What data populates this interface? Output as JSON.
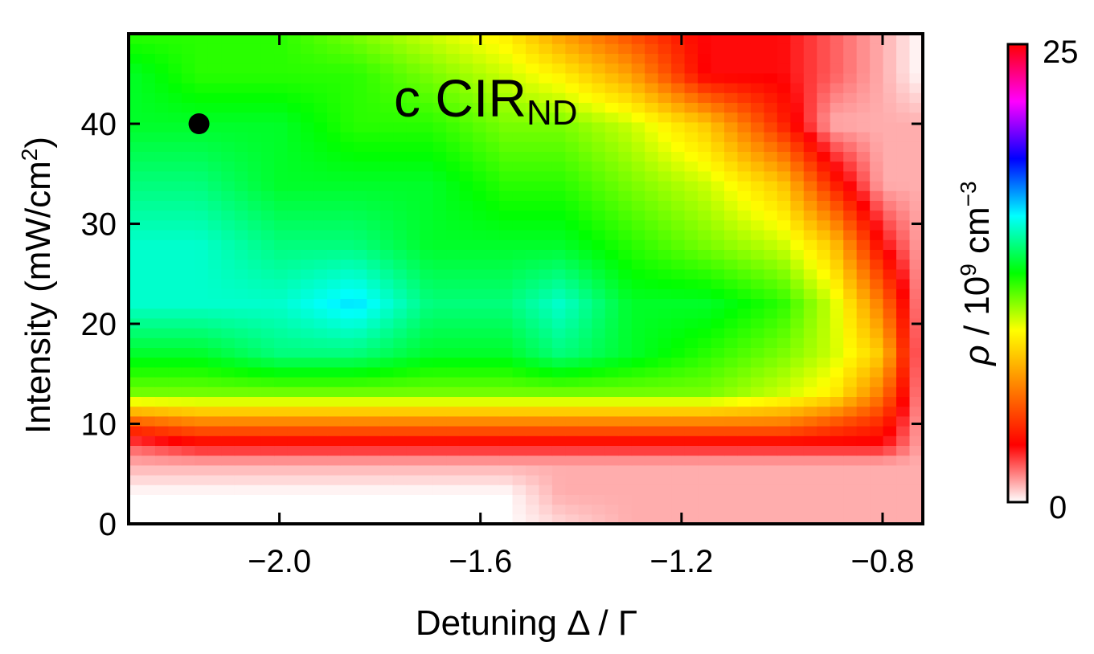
{
  "chart_data": {
    "type": "heatmap",
    "panel_label": "c CIR",
    "panel_label_subscript": "ND",
    "xlabel": "Detuning Δ / Γ",
    "ylabel": "Intensity (mW/cm",
    "ylabel_superscript": "2",
    "ylabel_close": ")",
    "xlim": [
      -2.3,
      -0.72
    ],
    "ylim": [
      0,
      49
    ],
    "xticks": [
      -2.0,
      -1.6,
      -1.2,
      -0.8
    ],
    "xtick_labels": [
      "−2.0",
      "−1.6",
      "−1.2",
      "−0.8"
    ],
    "yticks": [
      0,
      10,
      20,
      30,
      40
    ],
    "ytick_labels": [
      "0",
      "10",
      "20",
      "30",
      "40"
    ],
    "colorbar": {
      "min": 0,
      "max": 25,
      "min_label": "0",
      "max_label": "25",
      "label_rho": "ρ",
      "label_mid": " / 10",
      "label_exp": "9",
      "label_unit": " cm",
      "label_unit_exp": "−3",
      "colors": [
        "#ffffff",
        "#ff0000",
        "#ff8000",
        "#ffff00",
        "#00ff00",
        "#00ffff",
        "#0000ff",
        "#ff00ff",
        "#ff0000"
      ]
    },
    "marker": {
      "x": -2.16,
      "y": 40
    },
    "x": [
      -2.3,
      -2.16,
      -2.0,
      -1.85,
      -1.7,
      -1.55,
      -1.44,
      -1.3,
      -1.15,
      -1.0,
      -0.9,
      -0.8,
      -0.72
    ],
    "y": [
      0,
      3,
      6,
      8,
      10,
      13,
      17,
      22,
      28,
      34,
      40,
      45,
      49
    ],
    "z": [
      [
        0,
        0,
        0,
        0,
        0,
        0,
        0.5,
        1,
        1,
        1,
        1,
        1,
        1
      ],
      [
        0,
        0,
        0,
        0,
        0,
        0,
        1,
        1,
        1,
        1,
        1,
        1,
        1
      ],
      [
        1,
        1,
        1,
        1,
        1,
        1,
        1,
        1,
        1,
        1,
        1,
        1,
        1
      ],
      [
        2,
        3,
        3,
        3,
        3,
        3,
        3,
        3,
        3,
        3,
        3,
        3,
        1
      ],
      [
        5,
        6,
        6,
        6,
        6,
        6,
        6,
        6,
        6,
        6,
        5,
        4,
        1
      ],
      [
        11,
        11,
        11,
        11,
        11,
        11,
        11,
        11,
        11,
        10,
        9,
        6,
        1
      ],
      [
        13,
        13,
        14,
        14,
        13,
        13,
        14,
        13,
        12,
        11,
        10,
        8,
        1
      ],
      [
        15,
        15,
        15,
        16,
        14,
        14,
        15,
        13,
        13,
        12,
        10,
        6,
        1
      ],
      [
        15,
        15,
        14,
        14,
        13,
        13,
        13,
        12,
        11,
        10,
        8,
        3,
        1
      ],
      [
        14,
        14,
        13,
        13,
        13,
        12,
        12,
        11,
        10,
        8,
        4,
        1,
        1
      ],
      [
        13,
        13,
        13,
        12,
        12,
        11,
        11,
        10,
        8,
        4,
        1,
        1,
        1
      ],
      [
        13,
        12,
        12,
        12,
        11,
        10,
        9,
        7,
        3,
        3,
        2,
        1,
        0
      ],
      [
        12,
        12,
        12,
        11,
        10,
        9,
        7,
        5,
        3,
        3,
        2,
        1,
        0
      ]
    ]
  }
}
